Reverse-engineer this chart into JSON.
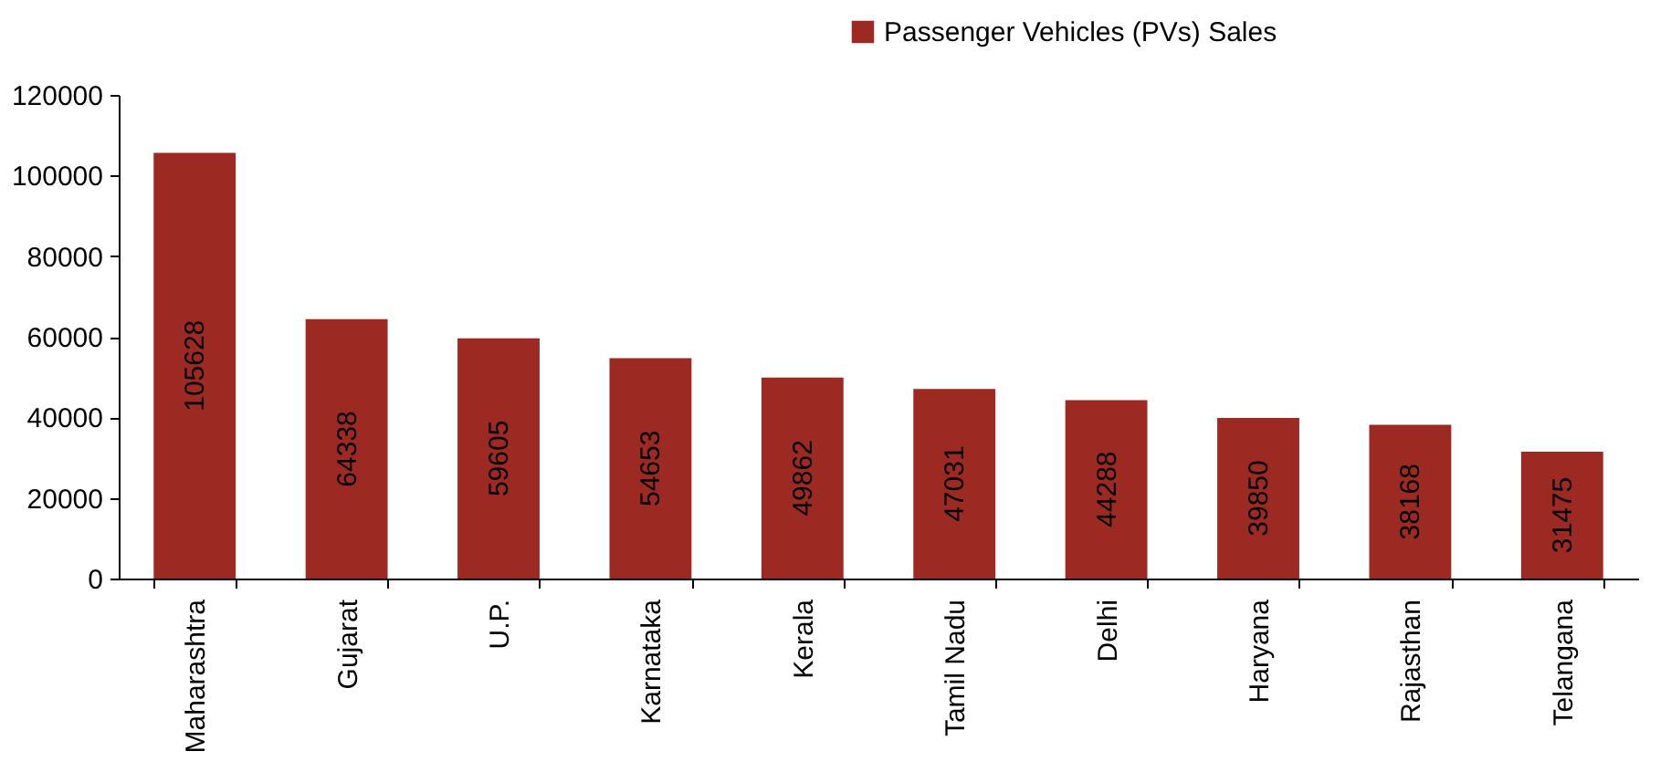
{
  "chart_data": {
    "type": "bar",
    "categories": [
      "Maharashtra",
      "Gujarat",
      "U.P.",
      "Karnataka",
      "Kerala",
      "Tamil Nadu",
      "Delhi",
      "Haryana",
      "Rajasthan",
      "Telangana"
    ],
    "series": [
      {
        "name": "Passenger Vehicles (PVs) Sales",
        "color": "#9c2a22",
        "values": [
          105628,
          64338,
          59605,
          54653,
          49862,
          47031,
          44288,
          39850,
          38168,
          31475
        ]
      }
    ],
    "ylim": [
      0,
      120000
    ],
    "yticks": [
      0,
      20000,
      40000,
      60000,
      80000,
      100000,
      120000
    ],
    "data_labels": true,
    "legend": "top right",
    "grid": false
  }
}
